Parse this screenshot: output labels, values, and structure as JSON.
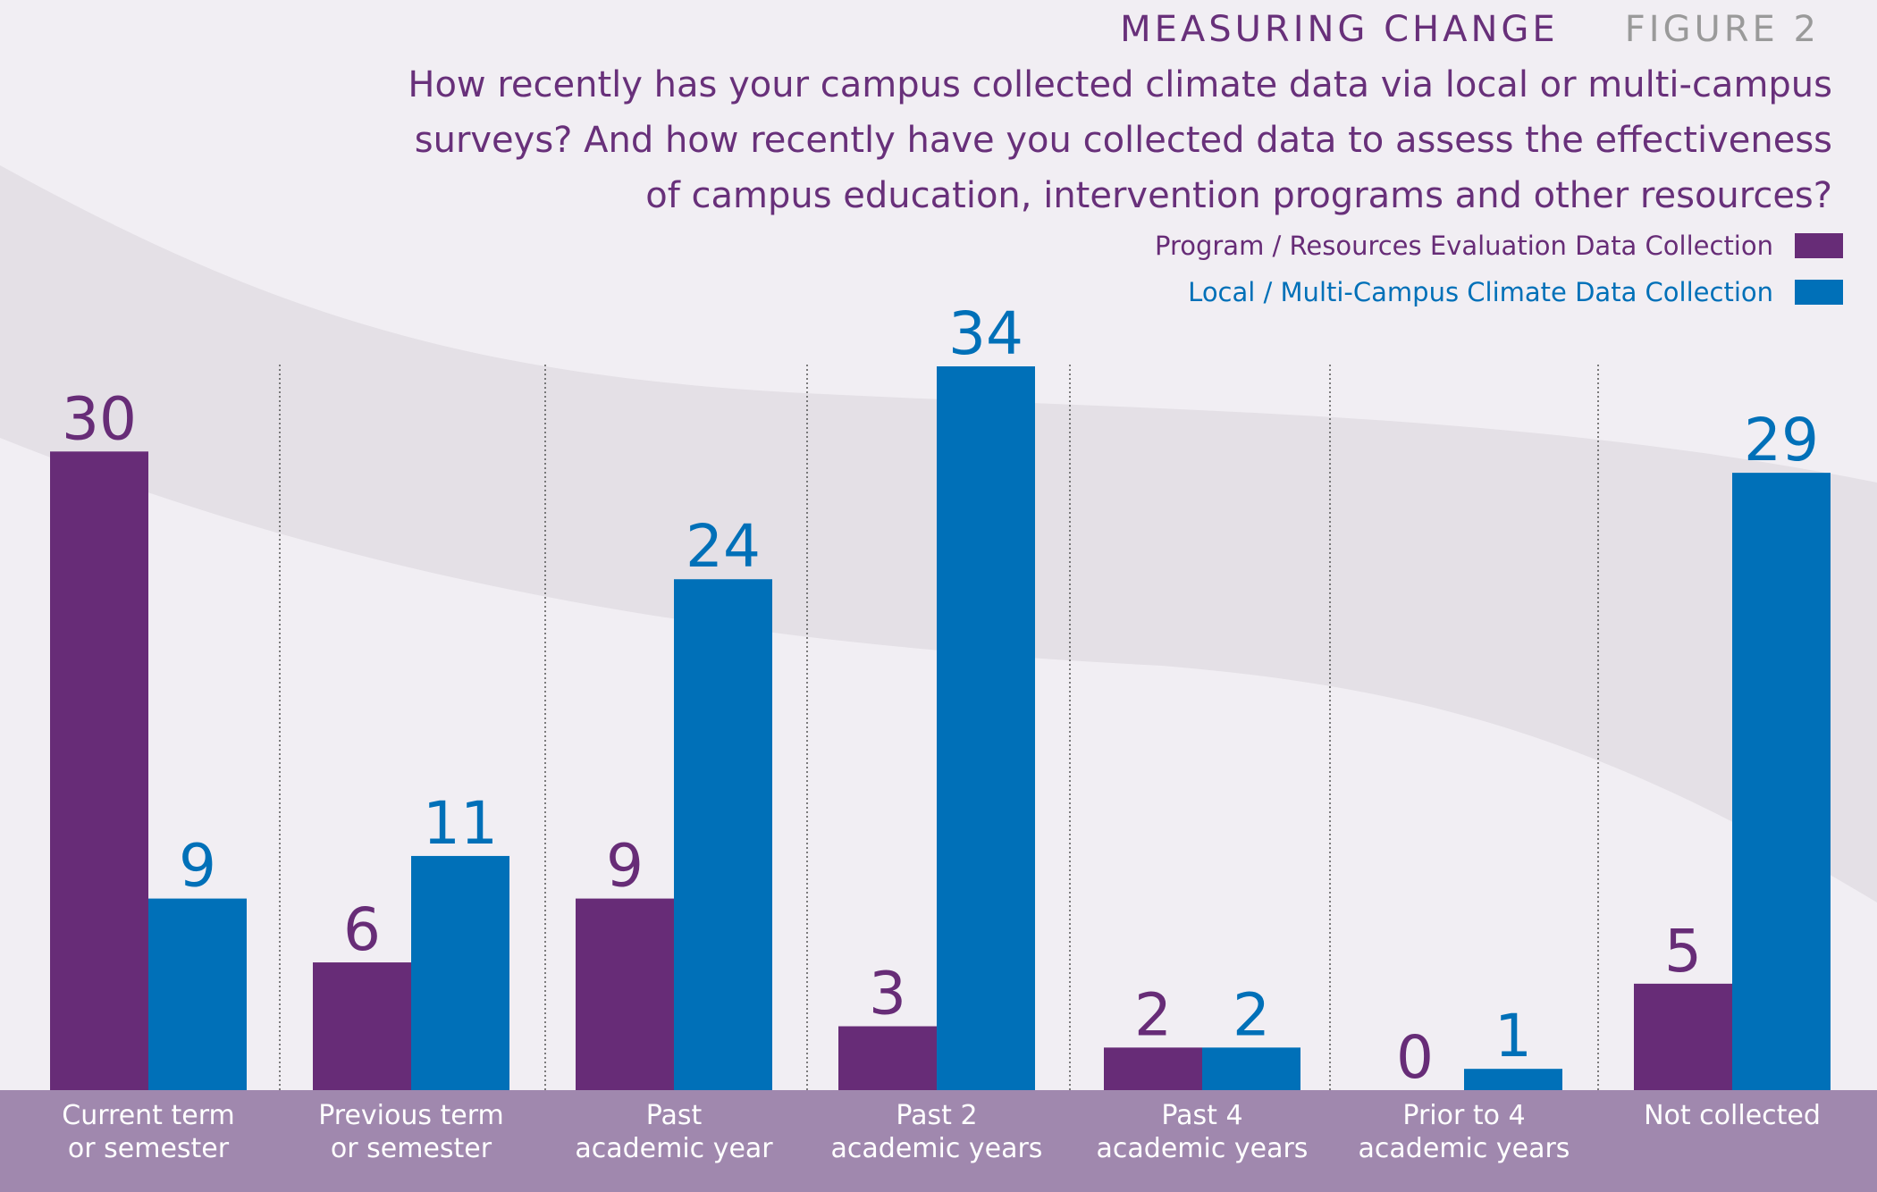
{
  "header": {
    "title": "MEASURING CHANGE",
    "figure": "FIGURE 2",
    "subtitle": "How recently has your campus collected climate data via local or multi-campus surveys? And how recently have you collected data to assess the effectiveness of campus education, intervention programs and other resources?"
  },
  "colors": {
    "program": "#672c77",
    "climate": "#0070b8",
    "band": "#a088ae",
    "background": "#f1eef3",
    "swoosh": "#e4e0e6"
  },
  "legend": [
    {
      "label": "Program / Resources Evaluation Data Collection",
      "color": "#672c77"
    },
    {
      "label": "Local / Multi-Campus Climate Data Collection",
      "color": "#0070b8"
    }
  ],
  "chart_data": {
    "type": "bar",
    "categories": [
      [
        "Current term",
        "or semester"
      ],
      [
        "Previous term",
        "or semester"
      ],
      [
        "Past",
        "academic year"
      ],
      [
        "Past 2",
        "academic years"
      ],
      [
        "Past 4",
        "academic years"
      ],
      [
        "Prior to 4",
        "academic years"
      ],
      [
        "Not collected"
      ]
    ],
    "series": [
      {
        "name": "Program / Resources Evaluation Data Collection",
        "values": [
          30,
          6,
          9,
          3,
          2,
          0,
          5
        ]
      },
      {
        "name": "Local / Multi-Campus Climate Data Collection",
        "values": [
          9,
          11,
          24,
          34,
          2,
          1,
          29
        ]
      }
    ],
    "ylim": [
      0,
      34
    ],
    "data_labels": [
      [
        "30",
        "6",
        "9",
        "3",
        "2",
        "0",
        "5"
      ],
      [
        "9",
        "11",
        "24",
        "34",
        "2",
        "1",
        "29"
      ]
    ]
  }
}
